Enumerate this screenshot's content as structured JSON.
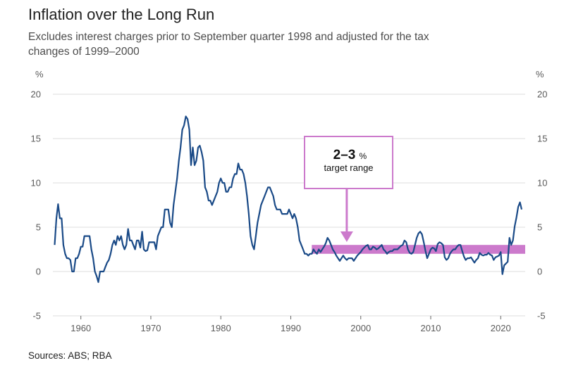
{
  "chart_data": {
    "type": "line",
    "title": "Inflation over the Long Run",
    "subtitle": "Excludes interest charges prior to September quarter 1998 and adjusted for the tax changes of 1999–2000",
    "source": "Sources: ABS; RBA",
    "y_unit_left": "%",
    "y_unit_right": "%",
    "ylim": [
      -5,
      20
    ],
    "y_ticks": [
      -5,
      0,
      5,
      10,
      15,
      20
    ],
    "xlim": [
      1956,
      2023.5
    ],
    "x_ticks": [
      1960,
      1970,
      1980,
      1990,
      2000,
      2010,
      2020
    ],
    "grid": true,
    "target_band": {
      "low": 2,
      "high": 3,
      "start": 1993,
      "end": 2023.5,
      "color": "#cc7acc"
    },
    "annotation": {
      "main": "2–3",
      "pct": "%",
      "sub": "target range",
      "arrow_x": 1998,
      "color": "#cc7acc"
    },
    "series": [
      {
        "color": "#1a4a87",
        "points": [
          [
            1956.25,
            3.0
          ],
          [
            1956.5,
            6.0
          ],
          [
            1956.75,
            7.6
          ],
          [
            1957.0,
            6.0
          ],
          [
            1957.25,
            6.0
          ],
          [
            1957.5,
            3.0
          ],
          [
            1957.75,
            2.0
          ],
          [
            1958.0,
            1.5
          ],
          [
            1958.25,
            1.5
          ],
          [
            1958.5,
            1.3
          ],
          [
            1958.75,
            0.0
          ],
          [
            1959.0,
            0.0
          ],
          [
            1959.25,
            1.5
          ],
          [
            1959.5,
            1.5
          ],
          [
            1959.75,
            2.0
          ],
          [
            1960.0,
            2.8
          ],
          [
            1960.25,
            2.8
          ],
          [
            1960.5,
            4.0
          ],
          [
            1960.75,
            4.0
          ],
          [
            1961.0,
            4.0
          ],
          [
            1961.25,
            4.0
          ],
          [
            1961.5,
            2.5
          ],
          [
            1961.75,
            1.5
          ],
          [
            1962.0,
            0.0
          ],
          [
            1962.25,
            -0.5
          ],
          [
            1962.5,
            -1.2
          ],
          [
            1962.75,
            0.0
          ],
          [
            1963.0,
            0.0
          ],
          [
            1963.25,
            0.0
          ],
          [
            1963.5,
            0.5
          ],
          [
            1963.75,
            1.0
          ],
          [
            1964.0,
            1.3
          ],
          [
            1964.25,
            2.0
          ],
          [
            1964.5,
            3.0
          ],
          [
            1964.75,
            3.5
          ],
          [
            1965.0,
            3.0
          ],
          [
            1965.25,
            4.0
          ],
          [
            1965.5,
            3.5
          ],
          [
            1965.75,
            4.0
          ],
          [
            1966.0,
            3.0
          ],
          [
            1966.25,
            2.5
          ],
          [
            1966.5,
            3.0
          ],
          [
            1966.75,
            4.8
          ],
          [
            1967.0,
            3.5
          ],
          [
            1967.25,
            3.5
          ],
          [
            1967.5,
            3.0
          ],
          [
            1967.75,
            2.5
          ],
          [
            1968.0,
            3.5
          ],
          [
            1968.25,
            3.5
          ],
          [
            1968.5,
            2.7
          ],
          [
            1968.75,
            4.5
          ],
          [
            1969.0,
            2.5
          ],
          [
            1969.25,
            2.3
          ],
          [
            1969.5,
            2.4
          ],
          [
            1969.75,
            3.3
          ],
          [
            1970.0,
            3.3
          ],
          [
            1970.25,
            3.3
          ],
          [
            1970.5,
            3.3
          ],
          [
            1970.75,
            2.5
          ],
          [
            1971.0,
            4.0
          ],
          [
            1971.25,
            4.5
          ],
          [
            1971.5,
            5.0
          ],
          [
            1971.75,
            5.0
          ],
          [
            1972.0,
            7.0
          ],
          [
            1972.25,
            7.0
          ],
          [
            1972.5,
            7.0
          ],
          [
            1972.75,
            5.5
          ],
          [
            1973.0,
            5.0
          ],
          [
            1973.25,
            7.5
          ],
          [
            1973.5,
            9.0
          ],
          [
            1973.75,
            10.5
          ],
          [
            1974.0,
            12.5
          ],
          [
            1974.25,
            14.0
          ],
          [
            1974.5,
            16.0
          ],
          [
            1974.75,
            16.5
          ],
          [
            1975.0,
            17.5
          ],
          [
            1975.25,
            17.2
          ],
          [
            1975.5,
            16.0
          ],
          [
            1975.75,
            12.0
          ],
          [
            1976.0,
            14.0
          ],
          [
            1976.25,
            12.0
          ],
          [
            1976.5,
            12.5
          ],
          [
            1976.75,
            14.0
          ],
          [
            1977.0,
            14.2
          ],
          [
            1977.25,
            13.5
          ],
          [
            1977.5,
            12.5
          ],
          [
            1977.75,
            9.5
          ],
          [
            1978.0,
            9.0
          ],
          [
            1978.25,
            8.0
          ],
          [
            1978.5,
            8.0
          ],
          [
            1978.75,
            7.5
          ],
          [
            1979.0,
            8.0
          ],
          [
            1979.25,
            8.5
          ],
          [
            1979.5,
            9.0
          ],
          [
            1979.75,
            10.0
          ],
          [
            1980.0,
            10.5
          ],
          [
            1980.25,
            10.0
          ],
          [
            1980.5,
            10.0
          ],
          [
            1980.75,
            9.0
          ],
          [
            1981.0,
            9.0
          ],
          [
            1981.25,
            9.5
          ],
          [
            1981.5,
            9.5
          ],
          [
            1981.75,
            10.5
          ],
          [
            1982.0,
            11.0
          ],
          [
            1982.25,
            11.0
          ],
          [
            1982.5,
            12.2
          ],
          [
            1982.75,
            11.5
          ],
          [
            1983.0,
            11.5
          ],
          [
            1983.25,
            11.0
          ],
          [
            1983.5,
            10.0
          ],
          [
            1983.75,
            8.5
          ],
          [
            1984.0,
            6.5
          ],
          [
            1984.25,
            4.0
          ],
          [
            1984.5,
            3.0
          ],
          [
            1984.75,
            2.5
          ],
          [
            1985.0,
            4.0
          ],
          [
            1985.25,
            5.5
          ],
          [
            1985.5,
            6.5
          ],
          [
            1985.75,
            7.5
          ],
          [
            1986.0,
            8.0
          ],
          [
            1986.25,
            8.5
          ],
          [
            1986.5,
            9.0
          ],
          [
            1986.75,
            9.5
          ],
          [
            1987.0,
            9.5
          ],
          [
            1987.25,
            9.0
          ],
          [
            1987.5,
            8.5
          ],
          [
            1987.75,
            7.5
          ],
          [
            1988.0,
            7.0
          ],
          [
            1988.25,
            7.0
          ],
          [
            1988.5,
            7.0
          ],
          [
            1988.75,
            6.5
          ],
          [
            1989.0,
            6.5
          ],
          [
            1989.25,
            6.5
          ],
          [
            1989.5,
            6.5
          ],
          [
            1989.75,
            7.0
          ],
          [
            1990.0,
            6.5
          ],
          [
            1990.25,
            6.0
          ],
          [
            1990.5,
            6.5
          ],
          [
            1990.75,
            6.0
          ],
          [
            1991.0,
            5.0
          ],
          [
            1991.25,
            3.5
          ],
          [
            1991.5,
            3.0
          ],
          [
            1991.75,
            2.5
          ],
          [
            1992.0,
            2.0
          ],
          [
            1992.25,
            2.0
          ],
          [
            1992.5,
            1.8
          ],
          [
            1992.75,
            2.0
          ],
          [
            1993.0,
            2.0
          ],
          [
            1993.25,
            2.5
          ],
          [
            1993.5,
            2.2
          ],
          [
            1993.75,
            2.0
          ],
          [
            1994.0,
            2.5
          ],
          [
            1994.25,
            2.2
          ],
          [
            1994.5,
            2.5
          ],
          [
            1994.75,
            2.8
          ],
          [
            1995.0,
            3.2
          ],
          [
            1995.25,
            3.8
          ],
          [
            1995.5,
            3.5
          ],
          [
            1995.75,
            3.0
          ],
          [
            1996.0,
            2.5
          ],
          [
            1996.25,
            2.2
          ],
          [
            1996.5,
            1.8
          ],
          [
            1996.75,
            1.5
          ],
          [
            1997.0,
            1.2
          ],
          [
            1997.25,
            1.5
          ],
          [
            1997.5,
            1.8
          ],
          [
            1997.75,
            1.5
          ],
          [
            1998.0,
            1.3
          ],
          [
            1998.25,
            1.5
          ],
          [
            1998.5,
            1.5
          ],
          [
            1998.75,
            1.5
          ],
          [
            1999.0,
            1.2
          ],
          [
            1999.25,
            1.5
          ],
          [
            1999.5,
            1.8
          ],
          [
            1999.75,
            2.0
          ],
          [
            2000.0,
            2.2
          ],
          [
            2000.25,
            2.5
          ],
          [
            2000.5,
            2.7
          ],
          [
            2000.75,
            2.9
          ],
          [
            2001.0,
            3.0
          ],
          [
            2001.25,
            2.5
          ],
          [
            2001.5,
            2.5
          ],
          [
            2001.75,
            2.8
          ],
          [
            2002.0,
            2.7
          ],
          [
            2002.25,
            2.5
          ],
          [
            2002.5,
            2.6
          ],
          [
            2002.75,
            2.8
          ],
          [
            2003.0,
            3.0
          ],
          [
            2003.25,
            2.5
          ],
          [
            2003.5,
            2.3
          ],
          [
            2003.75,
            2.0
          ],
          [
            2004.0,
            2.2
          ],
          [
            2004.25,
            2.3
          ],
          [
            2004.5,
            2.3
          ],
          [
            2004.75,
            2.5
          ],
          [
            2005.0,
            2.5
          ],
          [
            2005.25,
            2.5
          ],
          [
            2005.5,
            2.7
          ],
          [
            2005.75,
            2.9
          ],
          [
            2006.0,
            3.0
          ],
          [
            2006.25,
            3.5
          ],
          [
            2006.5,
            3.3
          ],
          [
            2006.75,
            2.5
          ],
          [
            2007.0,
            2.1
          ],
          [
            2007.25,
            2.0
          ],
          [
            2007.5,
            2.2
          ],
          [
            2007.75,
            3.0
          ],
          [
            2008.0,
            3.8
          ],
          [
            2008.25,
            4.3
          ],
          [
            2008.5,
            4.5
          ],
          [
            2008.75,
            4.2
          ],
          [
            2009.0,
            3.3
          ],
          [
            2009.25,
            2.3
          ],
          [
            2009.5,
            1.5
          ],
          [
            2009.75,
            2.0
          ],
          [
            2010.0,
            2.5
          ],
          [
            2010.25,
            2.7
          ],
          [
            2010.5,
            2.6
          ],
          [
            2010.75,
            2.3
          ],
          [
            2011.0,
            3.1
          ],
          [
            2011.25,
            3.3
          ],
          [
            2011.5,
            3.2
          ],
          [
            2011.75,
            3.0
          ],
          [
            2012.0,
            1.6
          ],
          [
            2012.25,
            1.3
          ],
          [
            2012.5,
            1.5
          ],
          [
            2012.75,
            2.0
          ],
          [
            2013.0,
            2.3
          ],
          [
            2013.25,
            2.5
          ],
          [
            2013.5,
            2.5
          ],
          [
            2013.75,
            2.8
          ],
          [
            2014.0,
            3.0
          ],
          [
            2014.25,
            3.0
          ],
          [
            2014.5,
            2.3
          ],
          [
            2014.75,
            1.7
          ],
          [
            2015.0,
            1.3
          ],
          [
            2015.25,
            1.5
          ],
          [
            2015.5,
            1.5
          ],
          [
            2015.75,
            1.6
          ],
          [
            2016.0,
            1.3
          ],
          [
            2016.25,
            1.0
          ],
          [
            2016.5,
            1.3
          ],
          [
            2016.75,
            1.5
          ],
          [
            2017.0,
            2.1
          ],
          [
            2017.25,
            1.9
          ],
          [
            2017.5,
            1.8
          ],
          [
            2017.75,
            1.9
          ],
          [
            2018.0,
            1.9
          ],
          [
            2018.25,
            2.1
          ],
          [
            2018.5,
            1.9
          ],
          [
            2018.75,
            1.8
          ],
          [
            2019.0,
            1.3
          ],
          [
            2019.25,
            1.6
          ],
          [
            2019.5,
            1.7
          ],
          [
            2019.75,
            1.8
          ],
          [
            2020.0,
            2.2
          ],
          [
            2020.25,
            -0.3
          ],
          [
            2020.5,
            0.7
          ],
          [
            2020.75,
            0.9
          ],
          [
            2021.0,
            1.1
          ],
          [
            2021.25,
            3.8
          ],
          [
            2021.5,
            3.0
          ],
          [
            2021.75,
            3.5
          ],
          [
            2022.0,
            5.1
          ],
          [
            2022.25,
            6.1
          ],
          [
            2022.5,
            7.3
          ],
          [
            2022.75,
            7.8
          ],
          [
            2023.0,
            7.0
          ]
        ]
      }
    ]
  }
}
